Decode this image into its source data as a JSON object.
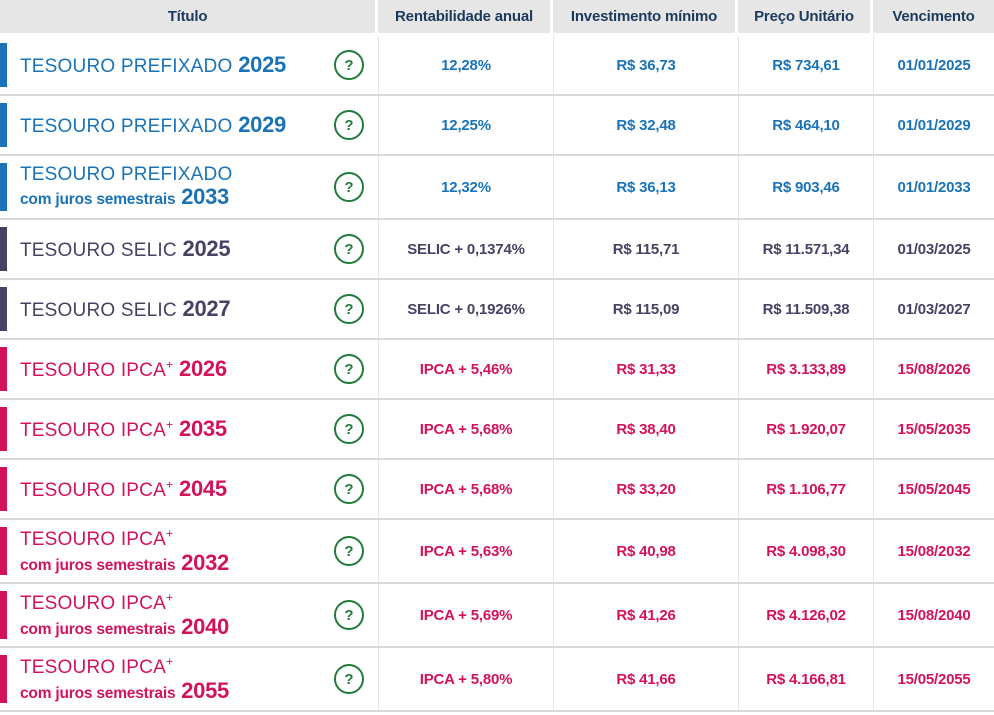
{
  "table": {
    "columns": [
      "Título",
      "Rentabilidade anual",
      "Investimento mínimo",
      "Preço Unitário",
      "Vencimento"
    ],
    "help_label": "?",
    "colors": {
      "prefixado": "#1a73b8",
      "selic": "#474264",
      "ipca": "#d2135c",
      "help_green": "#237a3d",
      "header_bg": "#e6e6e6",
      "header_text": "#1b3a5c"
    },
    "rows": [
      {
        "name": "TESOURO PREFIXADO",
        "sup": "",
        "sub": "",
        "year": "2025",
        "theme": "prefixado",
        "rate": "12,28%",
        "min_investment": "R$ 36,73",
        "unit_price": "R$ 734,61",
        "maturity": "01/01/2025"
      },
      {
        "name": "TESOURO PREFIXADO",
        "sup": "",
        "sub": "",
        "year": "2029",
        "theme": "prefixado",
        "rate": "12,25%",
        "min_investment": "R$ 32,48",
        "unit_price": "R$ 464,10",
        "maturity": "01/01/2029"
      },
      {
        "name": "TESOURO PREFIXADO",
        "sup": "",
        "sub": "com juros semestrais",
        "year": "2033",
        "theme": "prefixado",
        "rate": "12,32%",
        "min_investment": "R$ 36,13",
        "unit_price": "R$ 903,46",
        "maturity": "01/01/2033"
      },
      {
        "name": "TESOURO SELIC",
        "sup": "",
        "sub": "",
        "year": "2025",
        "theme": "selic",
        "rate": "SELIC + 0,1374%",
        "min_investment": "R$ 115,71",
        "unit_price": "R$ 11.571,34",
        "maturity": "01/03/2025"
      },
      {
        "name": "TESOURO SELIC",
        "sup": "",
        "sub": "",
        "year": "2027",
        "theme": "selic",
        "rate": "SELIC + 0,1926%",
        "min_investment": "R$ 115,09",
        "unit_price": "R$ 11.509,38",
        "maturity": "01/03/2027"
      },
      {
        "name": "TESOURO IPCA",
        "sup": "+",
        "sub": "",
        "year": "2026",
        "theme": "ipca",
        "rate": "IPCA + 5,46%",
        "min_investment": "R$ 31,33",
        "unit_price": "R$ 3.133,89",
        "maturity": "15/08/2026"
      },
      {
        "name": "TESOURO IPCA",
        "sup": "+",
        "sub": "",
        "year": "2035",
        "theme": "ipca",
        "rate": "IPCA + 5,68%",
        "min_investment": "R$ 38,40",
        "unit_price": "R$ 1.920,07",
        "maturity": "15/05/2035"
      },
      {
        "name": "TESOURO IPCA",
        "sup": "+",
        "sub": "",
        "year": "2045",
        "theme": "ipca",
        "rate": "IPCA + 5,68%",
        "min_investment": "R$ 33,20",
        "unit_price": "R$ 1.106,77",
        "maturity": "15/05/2045"
      },
      {
        "name": "TESOURO IPCA",
        "sup": "+",
        "sub": "com juros semestrais",
        "year": "2032",
        "theme": "ipca",
        "rate": "IPCA + 5,63%",
        "min_investment": "R$ 40,98",
        "unit_price": "R$ 4.098,30",
        "maturity": "15/08/2032"
      },
      {
        "name": "TESOURO IPCA",
        "sup": "+",
        "sub": "com juros semestrais",
        "year": "2040",
        "theme": "ipca",
        "rate": "IPCA + 5,69%",
        "min_investment": "R$ 41,26",
        "unit_price": "R$ 4.126,02",
        "maturity": "15/08/2040"
      },
      {
        "name": "TESOURO IPCA",
        "sup": "+",
        "sub": "com juros semestrais",
        "year": "2055",
        "theme": "ipca",
        "rate": "IPCA + 5,80%",
        "min_investment": "R$ 41,66",
        "unit_price": "R$ 4.166,81",
        "maturity": "15/05/2055"
      }
    ]
  }
}
